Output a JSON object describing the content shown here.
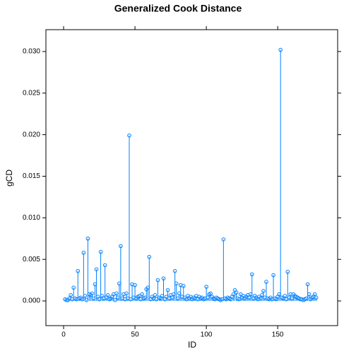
{
  "chart_data": {
    "type": "needle",
    "title": "Generalized Cook Distance",
    "x_label": "ID",
    "y_label": "gCD",
    "color": "#0080ff",
    "x": [
      1,
      2,
      3,
      4,
      5,
      6,
      7,
      8,
      9,
      10,
      11,
      12,
      13,
      14,
      15,
      16,
      17,
      18,
      19,
      20,
      21,
      22,
      23,
      24,
      25,
      26,
      27,
      28,
      29,
      30,
      31,
      32,
      33,
      34,
      35,
      36,
      37,
      38,
      39,
      40,
      41,
      42,
      43,
      44,
      45,
      46,
      47,
      48,
      49,
      50,
      51,
      52,
      53,
      54,
      55,
      56,
      57,
      58,
      59,
      60,
      61,
      62,
      63,
      64,
      65,
      66,
      67,
      68,
      69,
      70,
      71,
      72,
      73,
      74,
      75,
      76,
      77,
      78,
      79,
      80,
      81,
      82,
      83,
      84,
      85,
      86,
      87,
      88,
      89,
      90,
      91,
      92,
      93,
      94,
      95,
      96,
      97,
      98,
      99,
      100,
      101,
      102,
      103,
      104,
      105,
      106,
      107,
      108,
      109,
      110,
      111,
      112,
      113,
      114,
      115,
      116,
      117,
      118,
      119,
      120,
      121,
      122,
      123,
      124,
      125,
      126,
      127,
      128,
      129,
      130,
      131,
      132,
      133,
      134,
      135,
      136,
      137,
      138,
      139,
      140,
      141,
      142,
      143,
      144,
      145,
      146,
      147,
      148,
      149,
      150,
      151,
      152,
      153,
      154,
      155,
      156,
      157,
      158,
      159,
      160,
      161,
      162,
      163,
      164,
      165,
      166,
      167,
      168,
      169,
      170,
      171,
      172,
      173,
      174,
      175,
      176,
      177
    ],
    "values": [
      0.0002,
      0.0001,
      0.0001,
      0.0003,
      0.0007,
      0.0002,
      0.0016,
      0.0003,
      0.0002,
      0.0036,
      0.0003,
      0.0004,
      0.0002,
      0.0058,
      0.0006,
      0.0001,
      0.0075,
      0.0008,
      0.0007,
      0.0009,
      0.0003,
      0.002,
      0.0038,
      0.0005,
      0.0002,
      0.0059,
      0.0006,
      0.0003,
      0.0043,
      0.0004,
      0.0007,
      0.0002,
      0.0003,
      0.0005,
      0.0008,
      0.0001,
      0.0009,
      0.0004,
      0.0021,
      0.0066,
      0.0003,
      0.0008,
      0.0002,
      0.0009,
      0.0003,
      0.0199,
      0.0002,
      0.002,
      0.0004,
      0.0019,
      0.0003,
      0.0005,
      0.0006,
      0.0002,
      0.0008,
      0.0003,
      0.0004,
      0.0014,
      0.0016,
      0.0053,
      0.0002,
      0.0005,
      0.0003,
      0.0007,
      0.0002,
      0.0025,
      0.0004,
      0.0003,
      0.0006,
      0.0027,
      0.0002,
      0.0005,
      0.0013,
      0.0003,
      0.0007,
      0.0004,
      0.0008,
      0.0036,
      0.0021,
      0.0003,
      0.0009,
      0.0019,
      0.0005,
      0.0018,
      0.0004,
      0.0002,
      0.0006,
      0.0003,
      0.0005,
      0.0002,
      0.0004,
      0.0003,
      0.0006,
      0.0002,
      0.0005,
      0.0003,
      0.0004,
      0.0002,
      0.0003,
      0.0017,
      0.0004,
      0.0008,
      0.0009,
      0.0005,
      0.0003,
      0.0002,
      0.0004,
      0.0003,
      0.0002,
      0.0001,
      0.0002,
      0.0074,
      0.0003,
      0.0002,
      0.0004,
      0.0003,
      0.0002,
      0.0005,
      0.0008,
      0.0013,
      0.001,
      0.0003,
      0.0002,
      0.0008,
      0.0004,
      0.0006,
      0.0003,
      0.0005,
      0.0007,
      0.0004,
      0.0008,
      0.0032,
      0.0003,
      0.0006,
      0.0004,
      0.0002,
      0.0005,
      0.0003,
      0.0007,
      0.0012,
      0.0004,
      0.0023,
      0.0003,
      0.0002,
      0.0004,
      0.0002,
      0.0031,
      0.0003,
      0.0002,
      0.0005,
      0.0008,
      0.0302,
      0.0004,
      0.0003,
      0.0006,
      0.0002,
      0.0035,
      0.0004,
      0.0008,
      0.0003,
      0.0008,
      0.0006,
      0.0005,
      0.0004,
      0.0003,
      0.0002,
      0.0002,
      0.0001,
      0.0002,
      0.0003,
      0.002,
      0.0008,
      0.0002,
      0.0004,
      0.0005,
      0.0008,
      0.0004
    ],
    "xlim": [
      -12.4,
      192
    ],
    "ylim": [
      -0.00297,
      0.03263
    ],
    "xticks": [
      0,
      50,
      100,
      150
    ],
    "yticks": [
      {
        "value": 0,
        "label": "0.000"
      },
      {
        "value": 0.005,
        "label": "0.005"
      },
      {
        "value": 0.01,
        "label": "0.010"
      },
      {
        "value": 0.015,
        "label": "0.015"
      },
      {
        "value": 0.02,
        "label": "0.020"
      },
      {
        "value": 0.025,
        "label": "0.025"
      },
      {
        "value": 0.03,
        "label": "0.030"
      }
    ]
  }
}
